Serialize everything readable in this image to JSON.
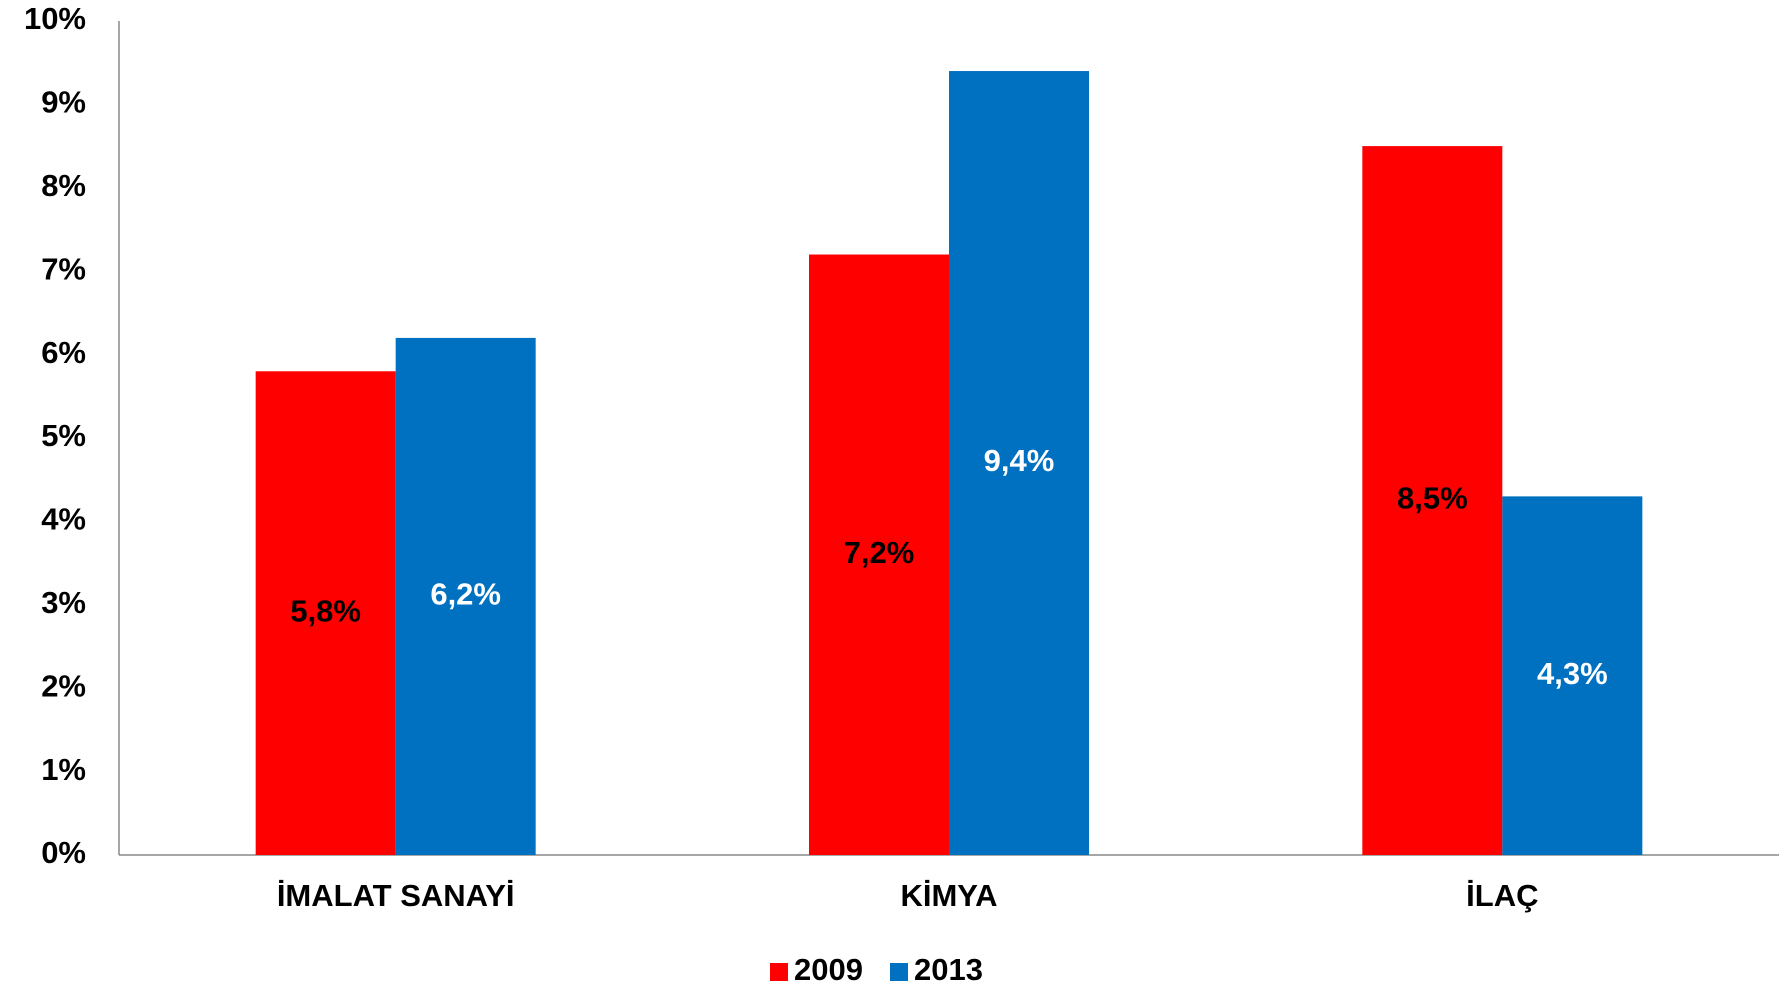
{
  "chart_data": {
    "type": "bar",
    "categories": [
      "İMALAT SANAYİ",
      "KİMYA",
      "İLAÇ"
    ],
    "series": [
      {
        "name": "2009",
        "color": "#ff0000",
        "label_color": "#000000",
        "values": [
          5.8,
          7.2,
          8.5
        ],
        "value_labels": [
          "5,8%",
          "7,2%",
          "8,5%"
        ]
      },
      {
        "name": "2013",
        "color": "#0070c0",
        "label_color": "#ffffff",
        "values": [
          6.2,
          9.4,
          4.3
        ],
        "value_labels": [
          "6,2%",
          "9,4%",
          "4,3%"
        ]
      }
    ],
    "ylim": [
      0,
      10
    ],
    "yticks": [
      {
        "value": 0,
        "label": "0%"
      },
      {
        "value": 1,
        "label": "1%"
      },
      {
        "value": 2,
        "label": "2%"
      },
      {
        "value": 3,
        "label": "3%"
      },
      {
        "value": 4,
        "label": "4%"
      },
      {
        "value": 5,
        "label": "5%"
      },
      {
        "value": 6,
        "label": "6%"
      },
      {
        "value": 7,
        "label": "7%"
      },
      {
        "value": 8,
        "label": "8%"
      },
      {
        "value": 9,
        "label": "9%"
      },
      {
        "value": 10,
        "label": "10%"
      }
    ],
    "grid": false,
    "legend": "bottom"
  }
}
